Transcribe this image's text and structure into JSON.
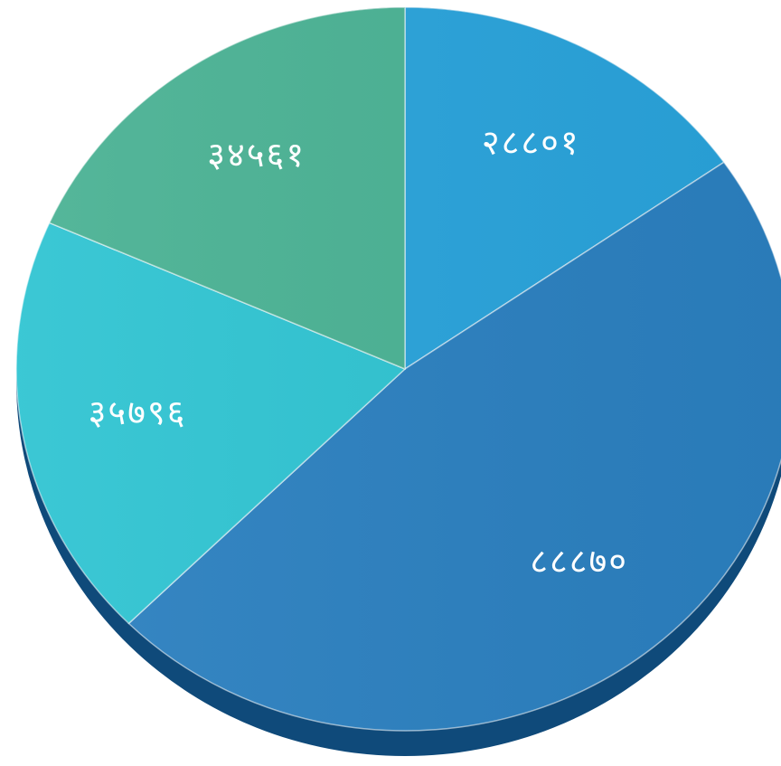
{
  "chart_data": {
    "type": "pie",
    "title": "",
    "legend": "none",
    "slices": [
      {
        "label": "२८८०१",
        "value": 28801,
        "color": "#29a3db"
      },
      {
        "label": "८८८७०",
        "value": 88870,
        "color": "#2b80c0"
      },
      {
        "label": "३५७९६",
        "value": 35796,
        "color": "#2fc4d2"
      },
      {
        "label": "३४५६१",
        "value": 34561,
        "color": "#4ab294"
      }
    ]
  }
}
